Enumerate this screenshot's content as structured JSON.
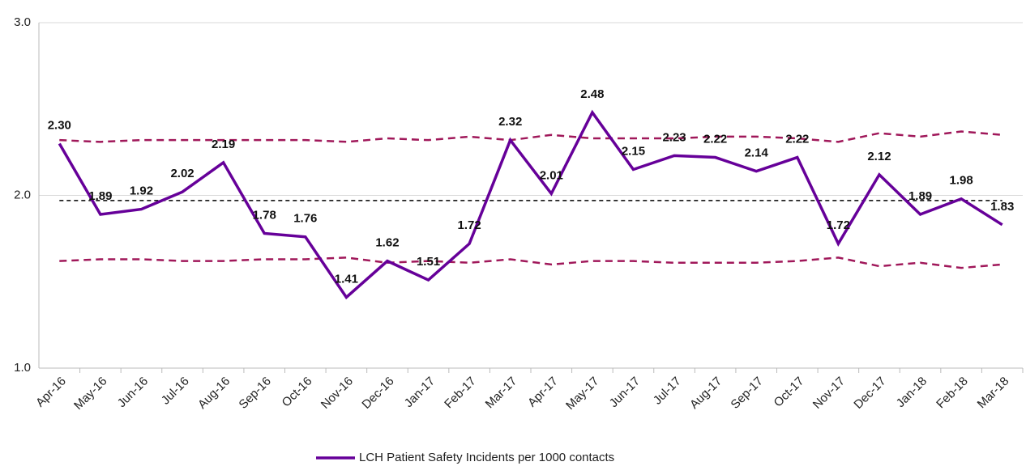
{
  "chart_data": {
    "type": "line",
    "categories": [
      "Apr-16",
      "May-16",
      "Jun-16",
      "Jul-16",
      "Aug-16",
      "Sep-16",
      "Oct-16",
      "Nov-16",
      "Dec-16",
      "Jan-17",
      "Feb-17",
      "Mar-17",
      "Apr-17",
      "May-17",
      "Jun-17",
      "Jul-17",
      "Aug-17",
      "Sep-17",
      "Oct-17",
      "Nov-17",
      "Dec-17",
      "Jan-18",
      "Feb-18",
      "Mar-18"
    ],
    "series": [
      {
        "name": "LCH Patient Safety Incidents per 1000 contacts",
        "color": "#660099",
        "values": [
          2.3,
          1.89,
          1.92,
          2.02,
          2.19,
          1.78,
          1.76,
          1.41,
          1.62,
          1.51,
          1.72,
          2.32,
          2.01,
          2.48,
          2.15,
          2.23,
          2.22,
          2.14,
          2.22,
          1.72,
          2.12,
          1.89,
          1.98,
          1.83
        ],
        "value_labels": [
          "2.30",
          "1.89",
          "1.92",
          "2.02",
          "2.19",
          "1.78",
          "1.76",
          "1.41",
          "1.62",
          "1.51",
          "1.72",
          "2.32",
          "2.01",
          "2.48",
          "2.15",
          "2.23",
          "2.22",
          "2.14",
          "2.22",
          "1.72",
          "2.12",
          "1.89",
          "1.98",
          "1.83"
        ]
      },
      {
        "color": "#a0185a",
        "dashed": true,
        "values": [
          2.32,
          2.31,
          2.32,
          2.32,
          2.32,
          2.32,
          2.32,
          2.31,
          2.33,
          2.32,
          2.34,
          2.32,
          2.35,
          2.33,
          2.33,
          2.33,
          2.34,
          2.34,
          2.33,
          2.31,
          2.36,
          2.34,
          2.37,
          2.35
        ]
      },
      {
        "color": "#a0185a",
        "dashed": true,
        "values": [
          1.62,
          1.63,
          1.63,
          1.62,
          1.62,
          1.63,
          1.63,
          1.64,
          1.61,
          1.62,
          1.61,
          1.63,
          1.6,
          1.62,
          1.62,
          1.61,
          1.61,
          1.61,
          1.62,
          1.64,
          1.59,
          1.61,
          1.58,
          1.6
        ]
      },
      {
        "color": "#000000",
        "dashed": true,
        "values": [
          1.97,
          1.97,
          1.97,
          1.97,
          1.97,
          1.97,
          1.97,
          1.97,
          1.97,
          1.97,
          1.97,
          1.97,
          1.97,
          1.97,
          1.97,
          1.97,
          1.97,
          1.97,
          1.97,
          1.97,
          1.97,
          1.97,
          1.97,
          1.97
        ]
      }
    ],
    "ylim": [
      1,
      3
    ],
    "yticks": [
      {
        "value": 1,
        "label": "1.0"
      },
      {
        "value": 2,
        "label": "2.0"
      },
      {
        "value": 3,
        "label": "3.0"
      }
    ],
    "grid": true,
    "legend": "bottom"
  }
}
